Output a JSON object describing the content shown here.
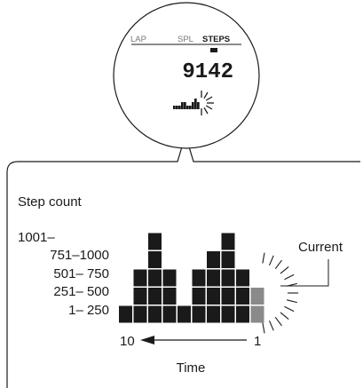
{
  "watch": {
    "modes": [
      "LAP",
      "SPL",
      "STEPS"
    ],
    "active_mode": "STEPS",
    "steps_value": "9142",
    "mini_graph_levels": [
      1,
      1,
      1,
      2,
      2,
      1,
      1,
      2,
      3,
      2
    ]
  },
  "legend": {
    "title": "Step count",
    "range_labels": [
      "1001–",
      "751–1000",
      "501– 750",
      "251– 500",
      "1– 250"
    ],
    "current_label": "Current",
    "axis_left": "10",
    "axis_right": "1",
    "axis_title": "Time"
  },
  "chart_data": {
    "type": "bar",
    "title": "Step count",
    "xlabel": "Time",
    "categories": [
      "10",
      "9",
      "8",
      "7",
      "6",
      "5",
      "4",
      "3",
      "2",
      "1"
    ],
    "values": [
      1,
      3,
      5,
      3,
      1,
      3,
      4,
      5,
      3,
      2
    ],
    "levels": [
      "1– 250",
      "251– 500",
      "501– 750",
      "751–1000",
      "1001–"
    ],
    "current_index": 9,
    "colors": {
      "filled": "#1a1a1a",
      "current": "#8a8a8a"
    }
  }
}
